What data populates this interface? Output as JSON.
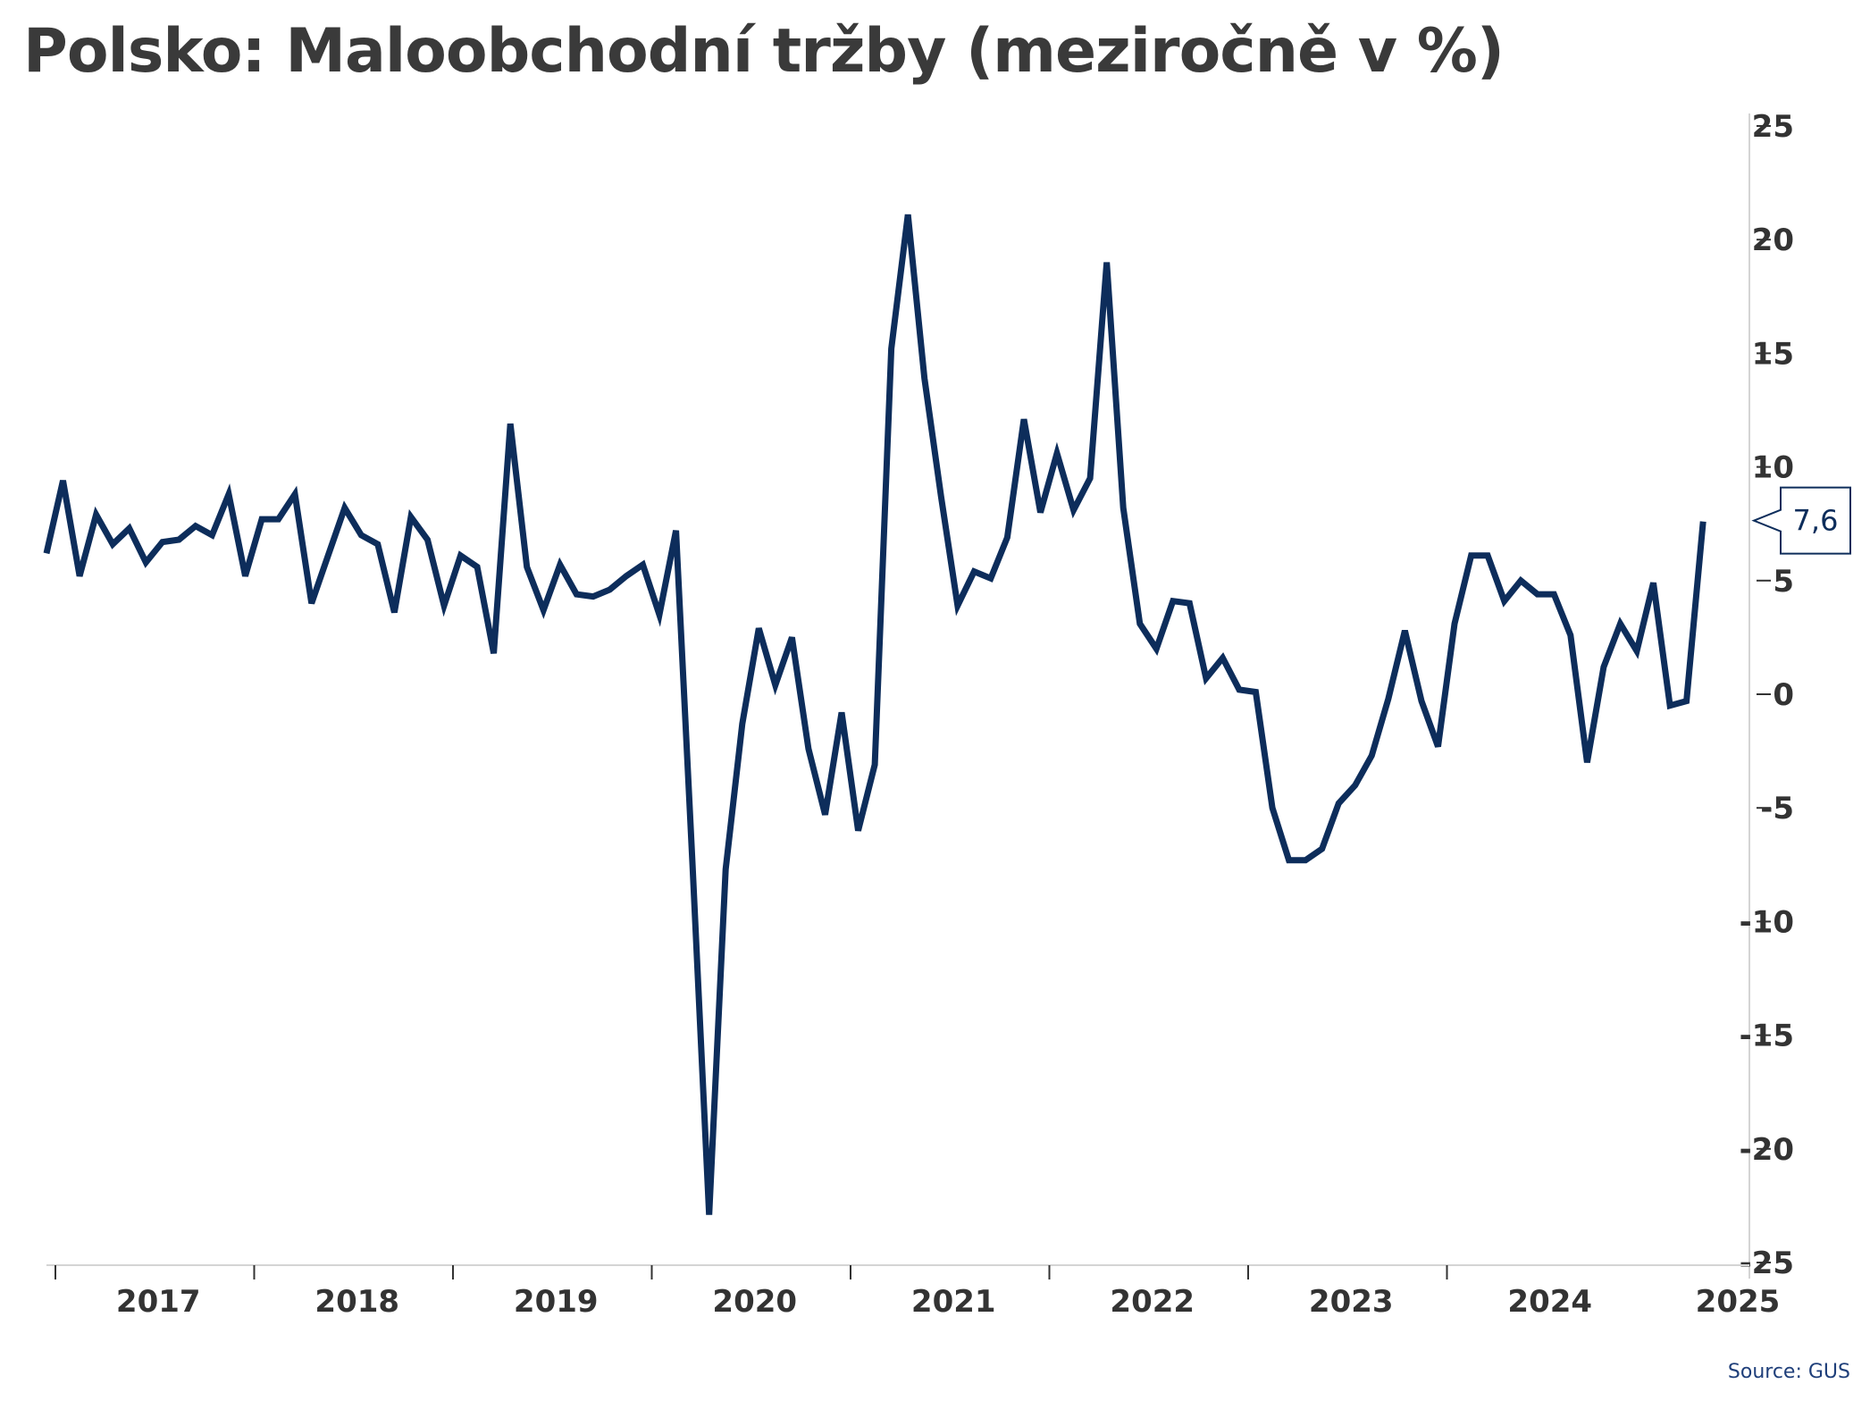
{
  "title": "Polsko: Maloobchodní tržby (meziročně v %)",
  "source": "Source: GUS",
  "colors": {
    "line": "#0d2d5b",
    "axis": "#d4d4d4",
    "tick": "#333333",
    "callout_border": "#0d2d5b",
    "callout_text": "#0d2d5b"
  },
  "chart_data": {
    "type": "line",
    "title": "Polsko: Maloobchodní tržby (meziročně v %)",
    "x_start": "2016-12",
    "x_unit": "month",
    "x_tick_labels": [
      "2017",
      "2018",
      "2019",
      "2020",
      "2021",
      "2022",
      "2023",
      "2024",
      "2025"
    ],
    "y_ticks": [
      25,
      20,
      15,
      10,
      5,
      0,
      -5,
      -10,
      -15,
      -20,
      -25
    ],
    "ylim": [
      -26,
      26
    ],
    "y_axis_position": "right",
    "grid": false,
    "last_value_label": "7,6",
    "series": [
      {
        "values": [
          6.2,
          9.4,
          5.2,
          7.9,
          6.6,
          7.3,
          5.8,
          6.7,
          6.8,
          7.4,
          7.0,
          8.8,
          5.2,
          7.7,
          7.7,
          8.8,
          4.0,
          6.1,
          8.2,
          7.0,
          6.6,
          3.6,
          7.8,
          6.8,
          3.9,
          6.1,
          5.6,
          1.8,
          11.9,
          5.6,
          3.7,
          5.7,
          4.4,
          4.3,
          4.6,
          5.2,
          5.7,
          3.5,
          7.2,
          -7.5,
          -22.9,
          -7.7,
          -1.3,
          2.9,
          0.4,
          2.5,
          -2.4,
          -5.3,
          -0.8,
          -6.0,
          -3.1,
          15.2,
          21.1,
          13.9,
          8.7,
          3.9,
          5.4,
          5.1,
          6.9,
          12.1,
          8.0,
          10.6,
          8.1,
          9.5,
          19.0,
          8.2,
          3.1,
          2.0,
          4.1,
          4.0,
          0.7,
          1.6,
          0.2,
          0.1,
          -5.0,
          -7.3,
          -7.3,
          -6.8,
          -4.8,
          -4.0,
          -2.7,
          -0.2,
          2.8,
          -0.3,
          -2.3,
          3.1,
          6.1,
          6.1,
          4.1,
          5.0,
          4.4,
          4.4,
          2.6,
          -3.0,
          1.2,
          3.1,
          1.9,
          4.9,
          -0.5,
          -0.3,
          7.6
        ]
      }
    ]
  }
}
